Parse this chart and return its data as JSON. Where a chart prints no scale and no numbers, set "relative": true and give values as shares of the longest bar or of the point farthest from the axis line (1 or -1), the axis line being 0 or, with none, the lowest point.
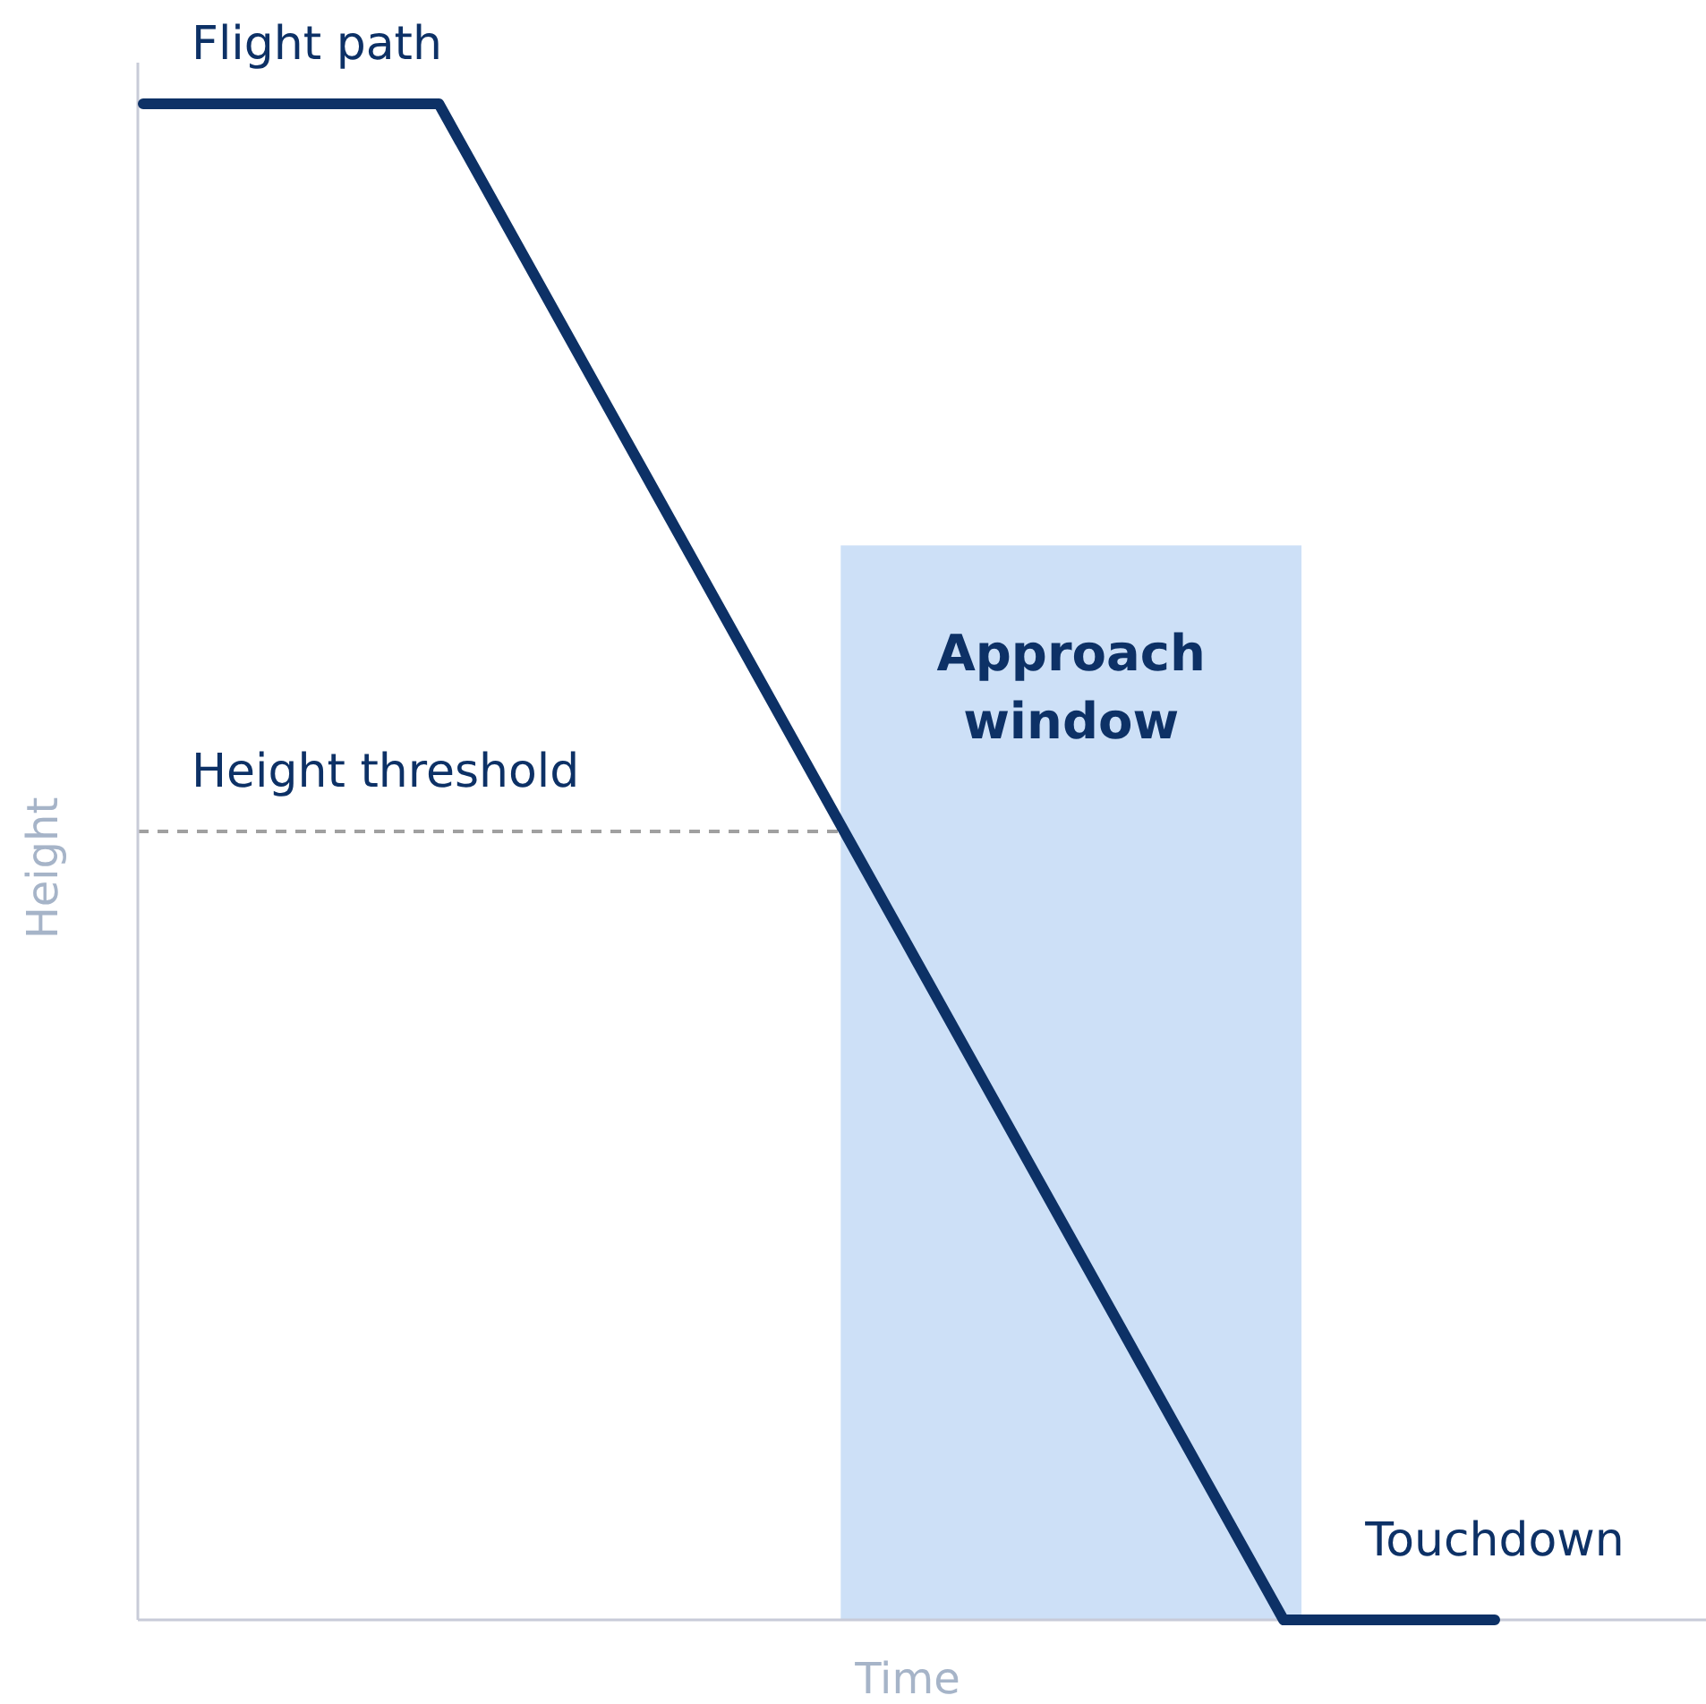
{
  "chart_data": {
    "type": "line",
    "relative": true,
    "xlabel": "Time",
    "ylabel": "Height",
    "categories": [
      null,
      null,
      null,
      null,
      null,
      null,
      null,
      null,
      null,
      null,
      null,
      null,
      null,
      null,
      null,
      null,
      null,
      null,
      null,
      null,
      null,
      null,
      null,
      null,
      null,
      null,
      null,
      null,
      null,
      null,
      null,
      null,
      null
    ],
    "marker": "none",
    "line_style": "solid",
    "series": [
      {
        "name": "Flight path",
        "color": "#0d3166",
        "values": [
          1,
          1,
          1,
          1,
          1,
          1,
          1,
          1,
          0.95,
          0.9,
          0.85,
          0.8,
          0.75,
          0.7,
          0.65,
          0.6,
          0.55,
          0.5,
          0.45,
          0.4,
          0.35,
          0.3,
          0.25,
          0.2,
          0.15,
          0.1,
          0.05,
          0,
          0,
          0,
          0,
          0,
          0
        ]
      }
    ],
    "ref_lines": [
      {
        "axis": "y",
        "value": 0.52,
        "label": "Height threshold",
        "color": "#a0a0a0",
        "line_style": "dashed"
      }
    ],
    "annotations": [
      "Approach window",
      "Touchdown"
    ]
  }
}
